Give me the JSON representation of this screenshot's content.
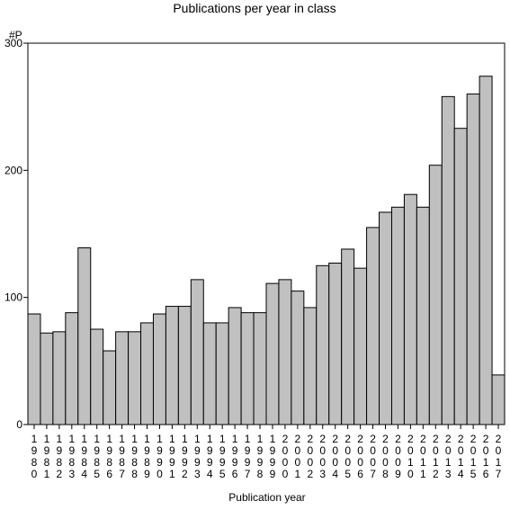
{
  "chart_data": {
    "type": "bar",
    "title": "Publications per year in class",
    "xlabel": "Publication year",
    "ylabel": "#P",
    "ylim": [
      0,
      300
    ],
    "yticks": [
      0,
      100,
      200,
      300
    ],
    "grid": false,
    "bar_color": "#c0c0c0",
    "categories": [
      "1980",
      "1981",
      "1982",
      "1983",
      "1984",
      "1985",
      "1986",
      "1987",
      "1988",
      "1989",
      "1990",
      "1991",
      "1992",
      "1993",
      "1994",
      "1995",
      "1996",
      "1997",
      "1998",
      "1999",
      "2000",
      "2001",
      "2002",
      "2003",
      "2004",
      "2005",
      "2006",
      "2007",
      "2008",
      "2009",
      "2010",
      "2011",
      "2012",
      "2013",
      "2014",
      "2015",
      "2016",
      "2017"
    ],
    "values": [
      87,
      72,
      73,
      88,
      139,
      75,
      58,
      73,
      73,
      80,
      87,
      93,
      93,
      114,
      80,
      80,
      92,
      88,
      88,
      111,
      114,
      105,
      92,
      125,
      127,
      138,
      123,
      155,
      167,
      171,
      181,
      171,
      204,
      258,
      233,
      260,
      274,
      39
    ]
  }
}
